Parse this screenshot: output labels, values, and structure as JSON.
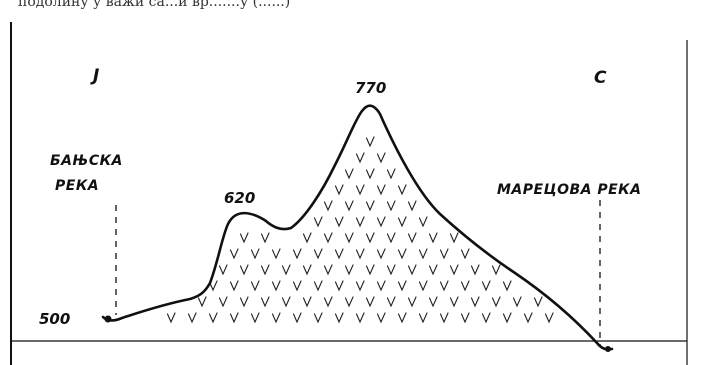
{
  "top_text": "подолину у важи са...и вр.......у  (......)",
  "directions": {
    "left": "J",
    "right": "C"
  },
  "rivers": {
    "left_line1": "БАЊСКА",
    "left_line2": "РЕКА",
    "right": "МАРЕЦОВА РЕКА"
  },
  "elevations": {
    "base": "500",
    "saddle_peak": "620",
    "summit": "770"
  },
  "hatch_symbol": "v",
  "colors": {
    "ink": "#111111",
    "background": "#ffffff"
  }
}
